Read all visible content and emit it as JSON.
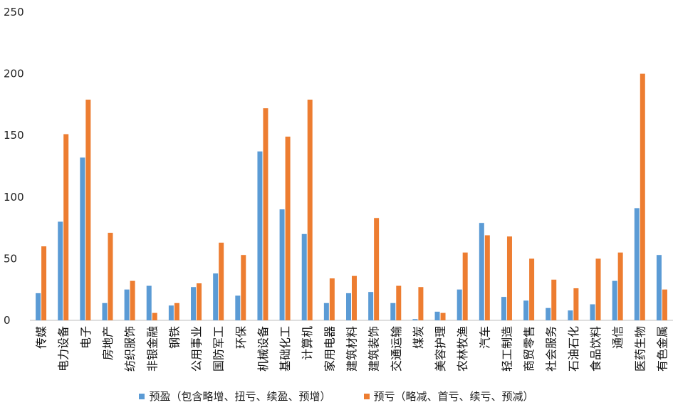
{
  "chart_data": {
    "type": "bar",
    "title": "",
    "xlabel": "",
    "ylabel": "",
    "ylim": [
      0,
      250
    ],
    "yticks": [
      0,
      50,
      100,
      150,
      200,
      250
    ],
    "grid": false,
    "legend_position": "bottom",
    "categories": [
      "传媒",
      "电力设备",
      "电子",
      "房地产",
      "纺织服饰",
      "非银金融",
      "钢铁",
      "公用事业",
      "国防军工",
      "环保",
      "机械设备",
      "基础化工",
      "计算机",
      "家用电器",
      "建筑材料",
      "建筑装饰",
      "交通运输",
      "煤炭",
      "美容护理",
      "农林牧渔",
      "汽车",
      "轻工制造",
      "商贸零售",
      "社会服务",
      "石油石化",
      "食品饮料",
      "通信",
      "医药生物",
      "有色金属"
    ],
    "series": [
      {
        "name": "预盈（包含略增、扭亏、续盈、预增）",
        "color": "#5b9bd5",
        "values": [
          22,
          80,
          132,
          14,
          25,
          28,
          12,
          27,
          38,
          20,
          137,
          90,
          70,
          14,
          22,
          23,
          14,
          1,
          7,
          25,
          79,
          19,
          16,
          10,
          8,
          13,
          32,
          91,
          53
        ]
      },
      {
        "name": "预亏（略减、首亏、续亏、预减）",
        "color": "#ed7d31",
        "values": [
          60,
          151,
          179,
          71,
          32,
          6,
          14,
          30,
          63,
          53,
          172,
          149,
          179,
          34,
          36,
          83,
          28,
          27,
          6,
          55,
          69,
          68,
          50,
          33,
          26,
          50,
          55,
          200,
          25
        ]
      }
    ]
  }
}
